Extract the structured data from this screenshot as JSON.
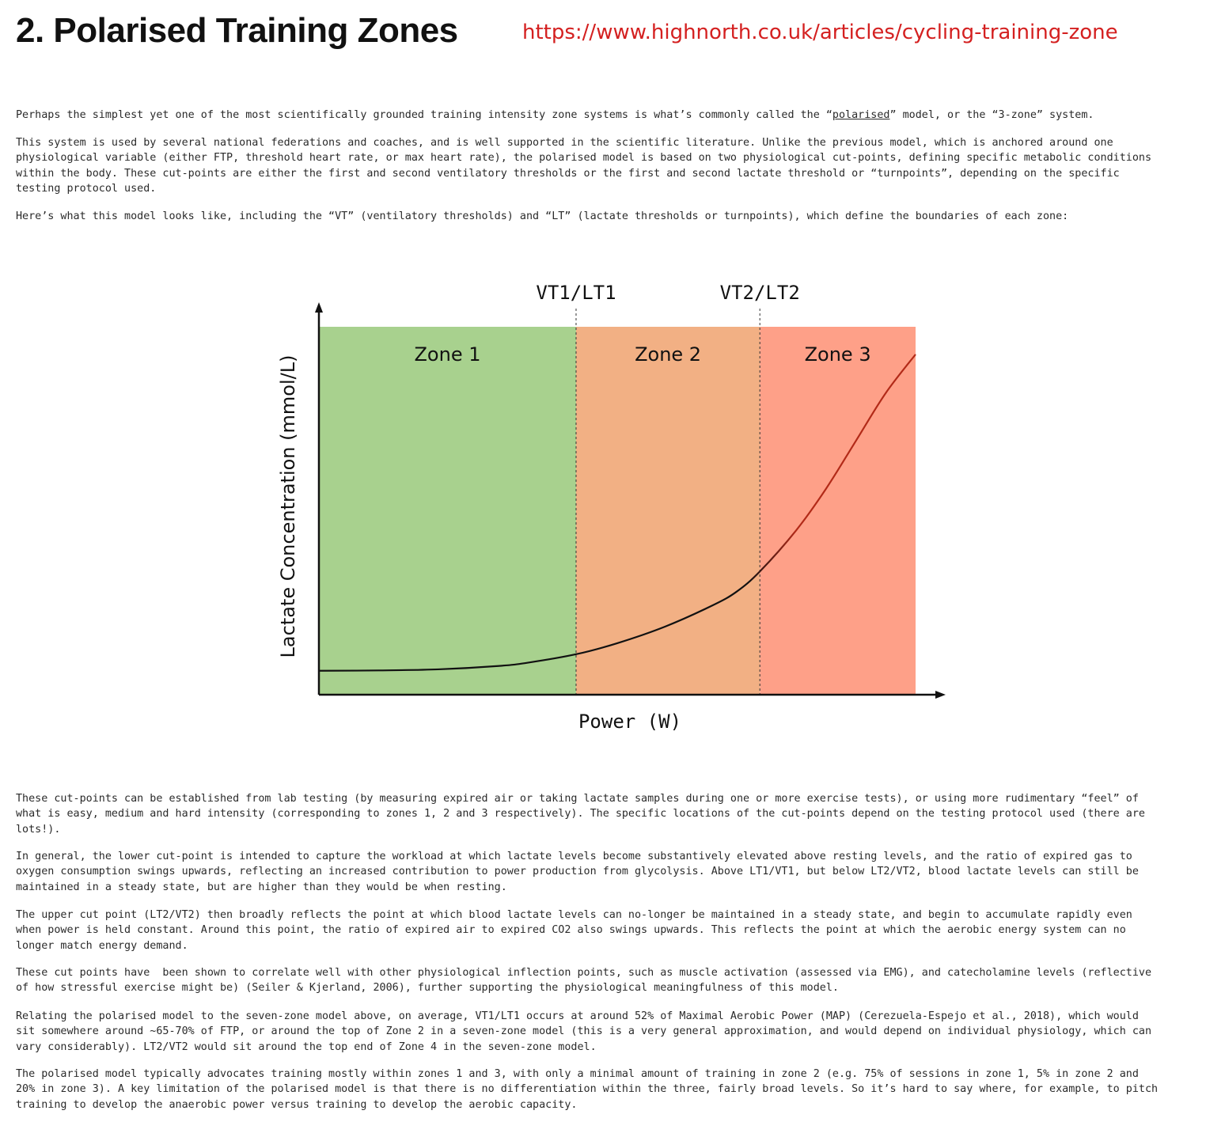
{
  "header": {
    "title": "2. Polarised Training Zones",
    "url": "https://www.highnorth.co.uk/articles/cycling-training-zone"
  },
  "intro": {
    "p1_before": "Perhaps the simplest yet one of the most scientifically grounded training intensity zone systems is what’s commonly called the “",
    "p1_link": "polarised",
    "p1_after": "” model, or the “3-zone” system.",
    "p2": "This system is used by several national federations and coaches, and is well supported in the scientific literature. Unlike the previous model, which is anchored around one\nphysiological variable (either FTP, threshold heart rate, or max heart rate), the polarised model is based on two physiological cut-points, defining specific metabolic conditions\nwithin the body. These cut-points are either the first and second ventilatory thresholds or the first and second lactate threshold or “turnpoints”, depending on the specific\ntesting protocol used.",
    "p3": "Here’s what this model looks like, including the “VT” (ventilatory thresholds) and “LT” (lactate thresholds or turnpoints), which define the boundaries of each zone:"
  },
  "chart_data": {
    "type": "line",
    "title": "",
    "xlabel": "Power (W)",
    "ylabel": "Lactate Concentration (mmol/L)",
    "x_ticks": [],
    "y_ticks": [],
    "grid": false,
    "thresholds": [
      {
        "label": "VT1/LT1",
        "x": 0.431
      },
      {
        "label": "VT2/LT2",
        "x": 0.739
      }
    ],
    "zones": [
      {
        "label": "Zone 1",
        "x_start": 0,
        "x_end": 0.431,
        "color": "#a8d18e"
      },
      {
        "label": "Zone 2",
        "x_start": 0.431,
        "x_end": 0.739,
        "color": "#f2b084"
      },
      {
        "label": "Zone 3",
        "x_start": 0.739,
        "x_end": 1.0,
        "color": "#fea088"
      }
    ],
    "series": [
      {
        "line_color_low": "#111111",
        "line_color_high": "#b22a18",
        "x": [
          0,
          0.1,
          0.2,
          0.3,
          0.35,
          0.431,
          0.5,
          0.58,
          0.66,
          0.7,
          0.739,
          0.8,
          0.85,
          0.9,
          0.95,
          1.0
        ],
        "y": [
          0.065,
          0.066,
          0.069,
          0.078,
          0.087,
          0.11,
          0.14,
          0.185,
          0.243,
          0.28,
          0.335,
          0.447,
          0.56,
          0.69,
          0.82,
          0.925
        ]
      }
    ]
  },
  "body": {
    "p4": "These cut-points can be established from lab testing (by measuring expired air or taking lactate samples during one or more exercise tests), or using more rudimentary “feel” of\nwhat is easy, medium and hard intensity (corresponding to zones 1, 2 and 3 respectively). The specific locations of the cut-points depend on the testing protocol used (there are\nlots!).",
    "p5": "In general, the lower cut-point is intended to capture the workload at which lactate levels become substantively elevated above resting levels, and the ratio of expired gas to\noxygen consumption swings upwards, reflecting an increased contribution to power production from glycolysis. Above LT1/VT1, but below LT2/VT2, blood lactate levels can still be\nmaintained in a steady state, but are higher than they would be when resting.",
    "p6": "The upper cut point (LT2/VT2) then broadly reflects the point at which blood lactate levels can no-longer be maintained in a steady state, and begin to accumulate rapidly even\nwhen power is held constant. Around this point, the ratio of expired air to expired CO2 also swings upwards. This reflects the point at which the aerobic energy system can no\nlonger match energy demand.",
    "p7": "These cut points have  been shown to correlate well with other physiological inflection points, such as muscle activation (assessed via EMG), and catecholamine levels (reflective\nof how stressful exercise might be) (Seiler & Kjerland, 2006), further supporting the physiological meaningfulness of this model.",
    "p8": "Relating the polarised model to the seven-zone model above, on average, VT1/LT1 occurs at around 52% of Maximal Aerobic Power (MAP) (Cerezuela-Espejo et al., 2018), which would\nsit somewhere around ~65-70% of FTP, or around the top of Zone 2 in a seven-zone model (this is a very general approximation, and would depend on individual physiology, which can\nvary considerably). LT2/VT2 would sit around the top end of Zone 4 in the seven-zone model.",
    "p9": "The polarised model typically advocates training mostly within zones 1 and 3, with only a minimal amount of training in zone 2 (e.g. 75% of sessions in zone 1, 5% in zone 2 and\n20% in zone 3). A key limitation of the polarised model is that there is no differentiation within the three, fairly broad levels. So it’s hard to say where, for example, to pitch\ntraining to develop the anaerobic power versus training to develop the aerobic capacity."
  }
}
